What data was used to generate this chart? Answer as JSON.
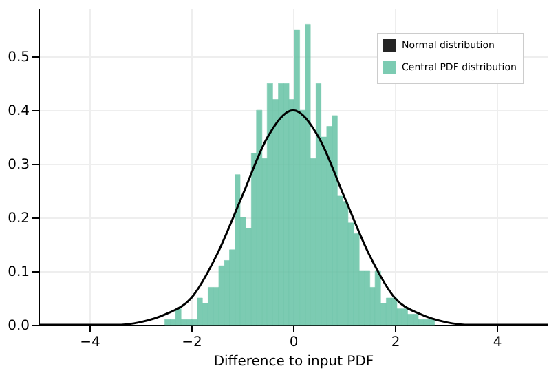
{
  "chart_data": {
    "type": "histogram",
    "xlabel": "Difference to input PDF",
    "bins": [
      -2.52,
      -2.41,
      -2.31,
      -2.2,
      -2.1,
      -1.99,
      -1.88,
      -1.78,
      -1.67,
      -1.57,
      -1.46,
      -1.35,
      -1.25,
      -1.14,
      -1.04,
      -0.93,
      -0.82,
      -0.72,
      -0.61,
      -0.51,
      -0.4,
      -0.29,
      -0.19,
      -0.08,
      0.02,
      0.13,
      0.24,
      0.34,
      0.45,
      0.55,
      0.66,
      0.77,
      0.87,
      0.98,
      1.08,
      1.19,
      1.3,
      1.4,
      1.51,
      1.61,
      1.72,
      1.83,
      1.93,
      2.04,
      2.14,
      2.25,
      2.36,
      2.46,
      2.57,
      2.67,
      2.78
    ],
    "series": [
      {
        "name": "Normal distribution",
        "type": "line",
        "color": "#000000",
        "x": [
          -5,
          -4.5,
          -4,
          -3.5,
          -3,
          -2.5,
          -2,
          -1.5,
          -1,
          -0.5,
          0,
          0.5,
          1,
          1.5,
          2,
          2.5,
          3,
          3.5,
          4,
          4.5,
          5
        ],
        "values": [
          0,
          0,
          0,
          0,
          0.005,
          0.02,
          0.05,
          0.13,
          0.24,
          0.35,
          0.4,
          0.35,
          0.24,
          0.13,
          0.05,
          0.02,
          0.005,
          0,
          0,
          0,
          0
        ]
      },
      {
        "name": "Central PDF distribution",
        "color": "#66c2a5",
        "values": [
          0.01,
          0.01,
          0.03,
          0.01,
          0.01,
          0.01,
          0.05,
          0.04,
          0.07,
          0.07,
          0.11,
          0.12,
          0.14,
          0.28,
          0.2,
          0.18,
          0.32,
          0.4,
          0.31,
          0.45,
          0.42,
          0.45,
          0.45,
          0.42,
          0.55,
          0.4,
          0.56,
          0.31,
          0.45,
          0.35,
          0.37,
          0.39,
          0.24,
          0.23,
          0.19,
          0.17,
          0.1,
          0.1,
          0.07,
          0.1,
          0.04,
          0.05,
          0.05,
          0.03,
          0.03,
          0.02,
          0.02,
          0.01,
          0.01,
          0.01
        ]
      }
    ],
    "xlim": [
      -5,
      5
    ],
    "ylim": [
      0,
      0.59
    ],
    "xticks": [
      -4,
      -2,
      0,
      2,
      4
    ],
    "yticks": [
      {
        "value": 0,
        "label": "0.0"
      },
      0.1,
      0.2,
      0.3,
      0.4,
      0.5
    ],
    "grid": true,
    "legend": "top right"
  }
}
